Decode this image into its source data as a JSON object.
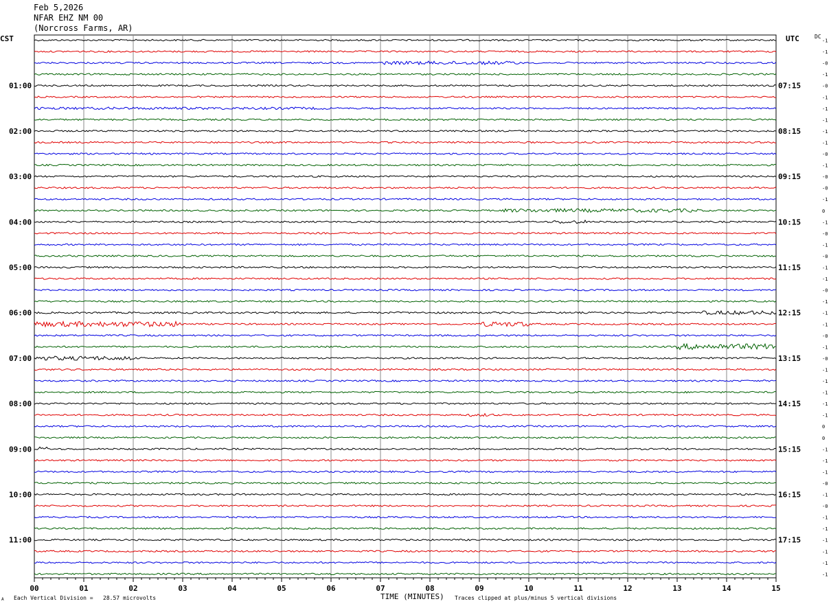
{
  "header": {
    "date": "Feb 5,2026",
    "station": "NFAR EHZ NM 00",
    "location": "(Norcross Farms, AR)"
  },
  "left_axis_label": "CST",
  "right_axis_label": "UTC",
  "dc_label": "DC",
  "footer": {
    "scale": "Each Vertical Division =   28.57 microvolts",
    "xlabel": "TIME (MINUTES)",
    "clip": "Traces clipped at plus/minus 5 vertical divisions",
    "corner": "A"
  },
  "colors": {
    "trace_cycle": [
      "#000000",
      "#e00000",
      "#0000e0",
      "#006000"
    ],
    "grid": "#888888"
  },
  "chart_data": {
    "type": "line",
    "title": "",
    "xlabel": "TIME (MINUTES)",
    "ylabel": "",
    "xlim": [
      0,
      15
    ],
    "x_ticks": [
      "00",
      "01",
      "02",
      "03",
      "04",
      "05",
      "06",
      "07",
      "08",
      "09",
      "10",
      "11",
      "12",
      "13",
      "14",
      "15"
    ],
    "trace_count": 48,
    "left_time_labels": [
      "01:00",
      "02:00",
      "03:00",
      "04:00",
      "05:00",
      "06:00",
      "07:00",
      "08:00",
      "09:00",
      "10:00",
      "11:00"
    ],
    "right_time_labels": [
      "07:15",
      "08:15",
      "09:15",
      "10:15",
      "11:15",
      "12:15",
      "13:15",
      "14:15",
      "15:15",
      "16:15",
      "17:15"
    ],
    "dc_offsets": [
      "-1",
      "-1",
      "-0",
      "-1",
      "-0",
      "-1",
      "-1",
      "-1",
      "-1",
      "-1",
      "-0",
      "-1",
      "-0",
      "-0",
      "-1",
      "0",
      "-1",
      "-0",
      "-1",
      "-0",
      "-1",
      "-1",
      "-0",
      "-1",
      "-1",
      "-1",
      "-0",
      "-1",
      "-0",
      "-1",
      "-1",
      "-1",
      "-1",
      "-1",
      "0",
      "0",
      "-1",
      "-1",
      "-1",
      "-0",
      "-1",
      "-0",
      "-1",
      "-1",
      "-1",
      "-1",
      "-1",
      "-1"
    ],
    "grid": true
  }
}
